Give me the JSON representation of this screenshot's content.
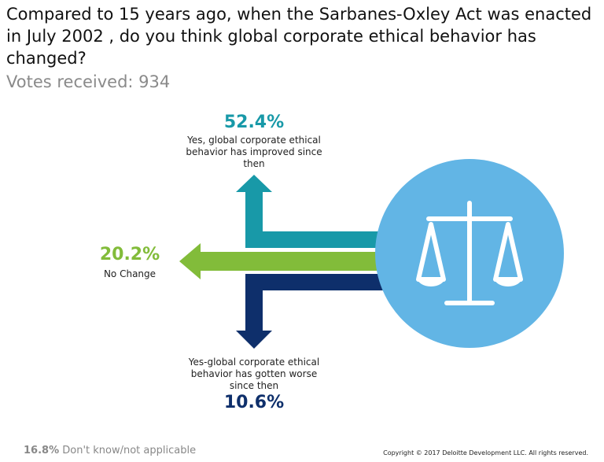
{
  "header": {
    "title": "Compared to 15 years ago, when the Sarbanes-Oxley Act was enacted in July 2002 , do you think global corporate ethical behavior has changed?",
    "votes": "Votes received: 934"
  },
  "options": [
    {
      "percent": "52.4%",
      "label": "Yes, global corporate ethical behavior has improved since then"
    },
    {
      "percent": "20.2%",
      "label": "No Change"
    },
    {
      "percent": "10.6%",
      "label": "Yes-global corporate ethical behavior has gotten worse since then"
    }
  ],
  "footer": {
    "percent": "16.8%",
    "label": "Don't know/not applicable",
    "copyright": "Copyright © 2017 Deloitte Development LLC. All rights reserved."
  }
}
